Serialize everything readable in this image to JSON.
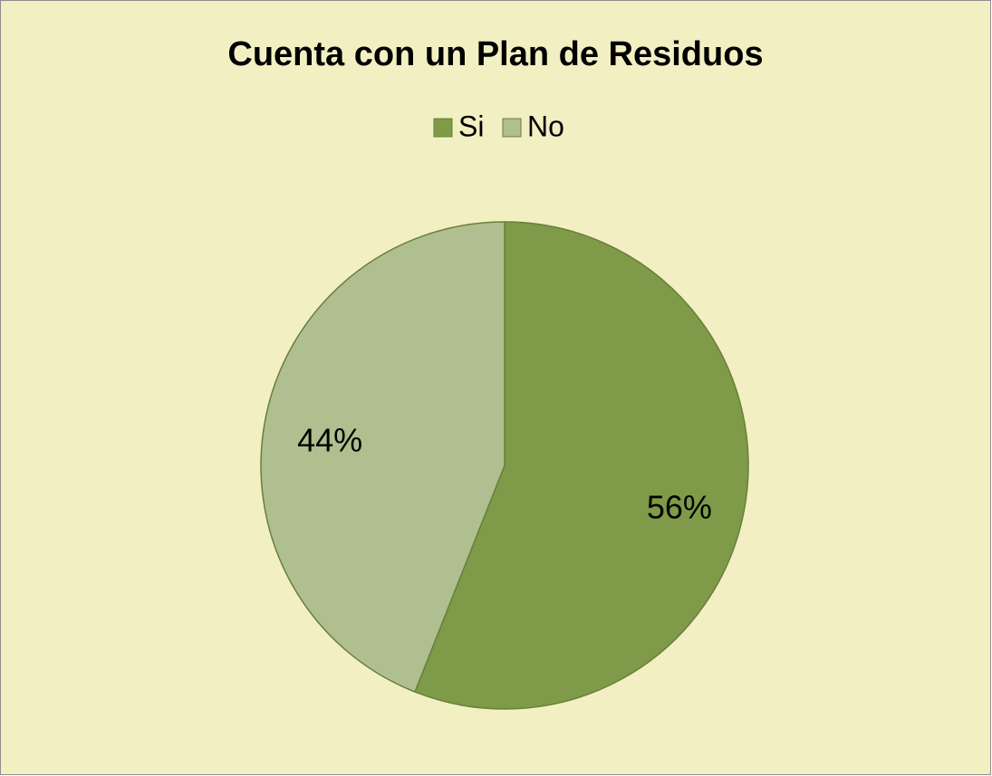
{
  "chart_data": {
    "type": "pie",
    "title": "Cuenta con un Plan de Residuos",
    "categories": [
      "Si",
      "No"
    ],
    "values": [
      56,
      44
    ],
    "value_labels": [
      "56%",
      "44%"
    ],
    "colors": [
      "#7f9a48",
      "#afbf8f"
    ],
    "legend": "top"
  }
}
